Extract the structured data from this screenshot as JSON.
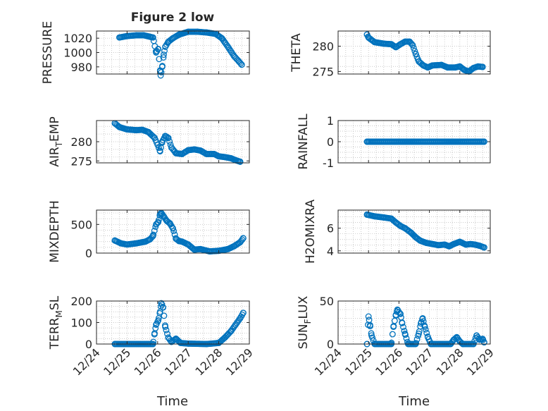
{
  "figure": {
    "title": "Figure 2 low"
  },
  "colors": {
    "marker": "#0072BD",
    "axis": "#262626",
    "grid": "#b8b8b8",
    "background": "#ffffff"
  },
  "x_axis": {
    "label": "Time",
    "ticks": [
      "12/24",
      "12/25",
      "12/26",
      "12/27",
      "12/28",
      "12/29"
    ],
    "range_days": [
      24,
      29
    ]
  },
  "chart_data": [
    {
      "id": "pressure",
      "type": "scatter",
      "title": "Figure 2 low",
      "ylabel": "PRESSURE",
      "ylim": [
        970,
        1030
      ],
      "yticks": [
        "980",
        "1000",
        "1020"
      ],
      "ytickvals": [
        980,
        1000,
        1020
      ],
      "grid": true,
      "x_units": "day of December",
      "keys": [
        [
          24.75,
          1021
        ],
        [
          25.0,
          1023
        ],
        [
          25.3,
          1024
        ],
        [
          25.55,
          1024
        ],
        [
          25.75,
          1022
        ],
        [
          25.85,
          1021
        ],
        [
          25.95,
          1000
        ],
        [
          26.02,
          1005
        ],
        [
          26.08,
          975
        ],
        [
          26.1,
          968
        ],
        [
          26.15,
          980
        ],
        [
          26.2,
          997
        ],
        [
          26.25,
          1008
        ],
        [
          26.35,
          1015
        ],
        [
          26.5,
          1020
        ],
        [
          26.7,
          1025
        ],
        [
          27.0,
          1029
        ],
        [
          27.3,
          1029
        ],
        [
          27.6,
          1028
        ],
        [
          27.9,
          1026
        ],
        [
          28.1,
          1020
        ],
        [
          28.3,
          1008
        ],
        [
          28.5,
          995
        ],
        [
          28.65,
          988
        ],
        [
          28.75,
          983
        ]
      ]
    },
    {
      "id": "theta",
      "type": "scatter",
      "ylabel": "THETA",
      "ylim": [
        274.5,
        283
      ],
      "yticks": [
        "275",
        "280"
      ],
      "ytickvals": [
        275,
        280
      ],
      "grid": true,
      "x_units": "day of December",
      "keys": [
        [
          24.95,
          282.3
        ],
        [
          25.0,
          281.7
        ],
        [
          25.2,
          280.8
        ],
        [
          25.5,
          280.5
        ],
        [
          25.75,
          280.4
        ],
        [
          25.9,
          279.8
        ],
        [
          26.05,
          280.4
        ],
        [
          26.2,
          280.9
        ],
        [
          26.35,
          280.9
        ],
        [
          26.45,
          280.2
        ],
        [
          26.55,
          278.5
        ],
        [
          26.65,
          277.0
        ],
        [
          26.8,
          276.2
        ],
        [
          26.95,
          275.8
        ],
        [
          27.1,
          276.2
        ],
        [
          27.4,
          276.3
        ],
        [
          27.6,
          275.8
        ],
        [
          27.85,
          275.8
        ],
        [
          28.0,
          276.0
        ],
        [
          28.15,
          275.3
        ],
        [
          28.3,
          275.0
        ],
        [
          28.45,
          275.7
        ],
        [
          28.6,
          276.0
        ],
        [
          28.75,
          275.9
        ]
      ]
    },
    {
      "id": "air_temp",
      "type": "scatter",
      "ylabel": "AIR_TEMP",
      "ylim": [
        274.5,
        285.5
      ],
      "yticks": [
        "275",
        "280"
      ],
      "ytickvals": [
        275,
        280
      ],
      "grid": true,
      "x_units": "day of December",
      "keys": [
        [
          24.6,
          284.8
        ],
        [
          24.75,
          283.8
        ],
        [
          25.0,
          283.2
        ],
        [
          25.3,
          283.0
        ],
        [
          25.5,
          283.1
        ],
        [
          25.7,
          282.5
        ],
        [
          25.9,
          281.0
        ],
        [
          26.0,
          279.2
        ],
        [
          26.08,
          277.5
        ],
        [
          26.15,
          280.0
        ],
        [
          26.25,
          281.5
        ],
        [
          26.35,
          281.0
        ],
        [
          26.45,
          278.5
        ],
        [
          26.6,
          277.0
        ],
        [
          26.8,
          276.8
        ],
        [
          27.0,
          277.8
        ],
        [
          27.2,
          278.0
        ],
        [
          27.4,
          277.7
        ],
        [
          27.6,
          276.8
        ],
        [
          27.85,
          276.8
        ],
        [
          28.0,
          276.2
        ],
        [
          28.2,
          276.0
        ],
        [
          28.4,
          275.7
        ],
        [
          28.55,
          275.2
        ],
        [
          28.7,
          274.8
        ]
      ]
    },
    {
      "id": "rainfall",
      "type": "scatter",
      "ylabel": "RAINFALL",
      "ylim": [
        -1,
        1
      ],
      "yticks": [
        "-1",
        "0",
        "1"
      ],
      "ytickvals": [
        -1,
        0,
        1
      ],
      "grid": true,
      "x_units": "day of December",
      "keys": [
        [
          24.95,
          0
        ],
        [
          28.8,
          0
        ]
      ]
    },
    {
      "id": "mixdepth",
      "type": "scatter",
      "ylabel": "MIXDEPTH",
      "ylim": [
        0,
        750
      ],
      "yticks": [
        "0",
        "500"
      ],
      "ytickvals": [
        0,
        500
      ],
      "grid": true,
      "x_units": "day of December",
      "keys": [
        [
          24.6,
          220
        ],
        [
          24.8,
          170
        ],
        [
          25.0,
          150
        ],
        [
          25.3,
          170
        ],
        [
          25.6,
          200
        ],
        [
          25.75,
          240
        ],
        [
          25.85,
          300
        ],
        [
          25.95,
          500
        ],
        [
          26.02,
          540
        ],
        [
          26.08,
          680
        ],
        [
          26.12,
          700
        ],
        [
          26.2,
          640
        ],
        [
          26.3,
          560
        ],
        [
          26.4,
          520
        ],
        [
          26.5,
          430
        ],
        [
          26.6,
          250
        ],
        [
          26.7,
          210
        ],
        [
          26.8,
          200
        ],
        [
          27.0,
          150
        ],
        [
          27.2,
          60
        ],
        [
          27.4,
          70
        ],
        [
          27.7,
          30
        ],
        [
          28.0,
          40
        ],
        [
          28.3,
          70
        ],
        [
          28.5,
          120
        ],
        [
          28.7,
          190
        ],
        [
          28.8,
          260
        ]
      ]
    },
    {
      "id": "h2omixra",
      "type": "scatter",
      "ylabel": "H2OMIXRA",
      "ylim": [
        3.8,
        7.6
      ],
      "yticks": [
        "4",
        "6"
      ],
      "ytickvals": [
        4,
        6
      ],
      "grid": true,
      "x_units": "day of December",
      "keys": [
        [
          24.95,
          7.2
        ],
        [
          25.2,
          7.05
        ],
        [
          25.5,
          6.95
        ],
        [
          25.75,
          6.85
        ],
        [
          25.9,
          6.5
        ],
        [
          26.05,
          6.2
        ],
        [
          26.2,
          6.0
        ],
        [
          26.4,
          5.6
        ],
        [
          26.55,
          5.2
        ],
        [
          26.7,
          4.9
        ],
        [
          26.9,
          4.7
        ],
        [
          27.1,
          4.6
        ],
        [
          27.3,
          4.5
        ],
        [
          27.5,
          4.55
        ],
        [
          27.65,
          4.4
        ],
        [
          27.8,
          4.6
        ],
        [
          28.0,
          4.8
        ],
        [
          28.2,
          4.55
        ],
        [
          28.35,
          4.6
        ],
        [
          28.5,
          4.55
        ],
        [
          28.65,
          4.45
        ],
        [
          28.8,
          4.3
        ]
      ]
    },
    {
      "id": "terr_msl",
      "type": "scatter",
      "ylabel": "TERR_MSL",
      "ylim": [
        0,
        200
      ],
      "yticks": [
        "0",
        "100",
        "200"
      ],
      "ytickvals": [
        0,
        100,
        200
      ],
      "grid": true,
      "x_units": "day of December",
      "keys": [
        [
          24.6,
          0
        ],
        [
          25.85,
          0
        ],
        [
          25.9,
          50
        ],
        [
          25.95,
          90
        ],
        [
          26.02,
          110
        ],
        [
          26.08,
          150
        ],
        [
          26.12,
          190
        ],
        [
          26.18,
          170
        ],
        [
          26.25,
          80
        ],
        [
          26.35,
          30
        ],
        [
          26.45,
          10
        ],
        [
          26.6,
          25
        ],
        [
          26.75,
          5
        ],
        [
          27.0,
          2
        ],
        [
          27.6,
          0
        ],
        [
          28.0,
          5
        ],
        [
          28.2,
          30
        ],
        [
          28.4,
          60
        ],
        [
          28.55,
          90
        ],
        [
          28.7,
          120
        ],
        [
          28.8,
          145
        ]
      ]
    },
    {
      "id": "sun_flux",
      "type": "scatter",
      "ylabel": "SUN_FLUX",
      "ylim": [
        0,
        50
      ],
      "yticks": [
        "0",
        "50"
      ],
      "ytickvals": [
        0,
        50
      ],
      "grid": true,
      "x_units": "day of December",
      "keys": [
        [
          24.95,
          0
        ],
        [
          25.0,
          32
        ],
        [
          25.05,
          22
        ],
        [
          25.1,
          10
        ],
        [
          25.2,
          0
        ],
        [
          25.75,
          0
        ],
        [
          25.82,
          20
        ],
        [
          25.9,
          34
        ],
        [
          25.95,
          40
        ],
        [
          26.0,
          37
        ],
        [
          26.05,
          35
        ],
        [
          26.1,
          25
        ],
        [
          26.2,
          12
        ],
        [
          26.3,
          0
        ],
        [
          26.55,
          0
        ],
        [
          26.65,
          12
        ],
        [
          26.72,
          24
        ],
        [
          26.78,
          30
        ],
        [
          26.85,
          20
        ],
        [
          26.95,
          8
        ],
        [
          27.05,
          0
        ],
        [
          27.7,
          0
        ],
        [
          27.8,
          5
        ],
        [
          27.9,
          8
        ],
        [
          28.0,
          3
        ],
        [
          28.1,
          0
        ],
        [
          28.45,
          0
        ],
        [
          28.55,
          10
        ],
        [
          28.65,
          5
        ],
        [
          28.75,
          6
        ],
        [
          28.8,
          2
        ]
      ]
    }
  ]
}
